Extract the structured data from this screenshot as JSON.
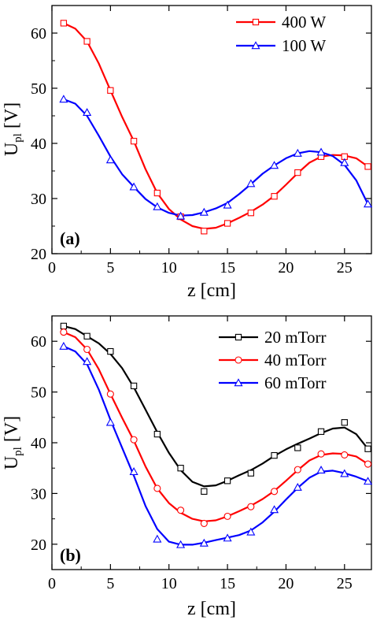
{
  "chart_data": [
    {
      "type": "line",
      "panel_label": "(a)",
      "xlabel": "z [cm]",
      "ylabel_main": "U",
      "ylabel_sub": "pl",
      "ylabel_unit": " [V]",
      "xlim": [
        0,
        27.3
      ],
      "ylim": [
        20,
        65
      ],
      "xticks": [
        0,
        5,
        10,
        15,
        20,
        25
      ],
      "yticks": [
        20,
        30,
        40,
        50,
        60
      ],
      "legend_position": "top-right",
      "series": [
        {
          "name": "400 W",
          "color": "#ff0000",
          "marker": "square",
          "x": [
            1,
            3,
            5,
            7,
            9,
            11,
            13,
            15,
            17,
            19,
            21,
            23,
            25,
            27
          ],
          "y": [
            61.8,
            58.5,
            49.6,
            40.4,
            31.0,
            26.7,
            24.1,
            25.5,
            27.4,
            30.4,
            34.7,
            37.6,
            37.6,
            35.8
          ],
          "curve_x": [
            1,
            2,
            3,
            4,
            5,
            6,
            7,
            8,
            9,
            10,
            11,
            12,
            13,
            14,
            15,
            16,
            17,
            18,
            19,
            20,
            21,
            22,
            23,
            24,
            25,
            26,
            27
          ],
          "curve_y": [
            61.8,
            60.8,
            58.5,
            54.5,
            49.6,
            44.8,
            40.4,
            35.3,
            31.0,
            28.1,
            26.2,
            25.0,
            24.5,
            24.7,
            25.5,
            26.5,
            27.6,
            28.9,
            30.5,
            32.5,
            34.6,
            36.5,
            37.6,
            37.9,
            37.8,
            37.3,
            35.8
          ]
        },
        {
          "name": "100 W",
          "color": "#0000ff",
          "marker": "triangle",
          "x": [
            1,
            3,
            5,
            7,
            9,
            11,
            13,
            15,
            17,
            19,
            21,
            23,
            25,
            27
          ],
          "y": [
            48.0,
            45.6,
            37.0,
            32.1,
            28.5,
            26.8,
            27.5,
            28.8,
            32.7,
            36.0,
            38.2,
            38.4,
            36.5,
            29.0
          ],
          "curve_x": [
            1,
            2,
            3,
            4,
            5,
            6,
            7,
            8,
            9,
            10,
            11,
            12,
            13,
            14,
            15,
            16,
            17,
            18,
            19,
            20,
            21,
            22,
            23,
            24,
            25,
            26,
            27
          ],
          "curve_y": [
            48.0,
            47.2,
            45.0,
            41.4,
            37.6,
            34.4,
            32.1,
            29.9,
            28.4,
            27.4,
            26.9,
            27.0,
            27.5,
            28.2,
            29.2,
            30.8,
            32.6,
            34.5,
            36.0,
            37.3,
            38.2,
            38.6,
            38.4,
            37.7,
            36.1,
            33.3,
            29.0
          ]
        }
      ]
    },
    {
      "type": "line",
      "panel_label": "(b)",
      "xlabel": "z [cm]",
      "ylabel_main": "U",
      "ylabel_sub": "pl",
      "ylabel_unit": " [V]",
      "xlim": [
        0,
        27.3
      ],
      "ylim": [
        15,
        65
      ],
      "xticks": [
        0,
        5,
        10,
        15,
        20,
        25
      ],
      "yticks": [
        20,
        30,
        40,
        50,
        60
      ],
      "legend_position": "top-right",
      "series": [
        {
          "name": "20 mTorr",
          "color": "#000000",
          "marker": "square",
          "x": [
            1,
            3,
            5,
            7,
            9,
            11,
            13,
            15,
            17,
            19,
            21,
            23,
            25,
            27
          ],
          "y": [
            63.0,
            61.0,
            58.0,
            51.2,
            41.7,
            35.0,
            30.4,
            32.5,
            34.0,
            37.5,
            39.0,
            42.2,
            44.0,
            38.8
          ],
          "curve_x": [
            1,
            2,
            3,
            4,
            5,
            6,
            7,
            8,
            9,
            10,
            11,
            12,
            13,
            14,
            15,
            16,
            17,
            18,
            19,
            20,
            21,
            22,
            23,
            24,
            25,
            26,
            27
          ],
          "curve_y": [
            63.0,
            62.4,
            61.0,
            59.6,
            57.5,
            54.7,
            50.9,
            46.5,
            42.1,
            38.0,
            34.6,
            32.3,
            31.4,
            31.6,
            32.5,
            33.6,
            34.6,
            35.9,
            37.4,
            38.7,
            39.8,
            40.8,
            41.9,
            42.8,
            43.0,
            41.7,
            38.8
          ]
        },
        {
          "name": "40 mTorr",
          "color": "#ff0000",
          "marker": "circle",
          "x": [
            1,
            3,
            5,
            7,
            9,
            11,
            13,
            15,
            17,
            19,
            21,
            23,
            25,
            27
          ],
          "y": [
            61.8,
            58.4,
            49.6,
            40.6,
            31.0,
            26.7,
            24.1,
            25.5,
            27.4,
            30.4,
            34.7,
            37.8,
            37.6,
            35.8
          ],
          "curve_x": [
            1,
            2,
            3,
            4,
            5,
            6,
            7,
            8,
            9,
            10,
            11,
            12,
            13,
            14,
            15,
            16,
            17,
            18,
            19,
            20,
            21,
            22,
            23,
            24,
            25,
            26,
            27
          ],
          "curve_y": [
            61.8,
            60.8,
            58.4,
            54.5,
            49.6,
            44.9,
            40.4,
            35.3,
            31.0,
            28.1,
            26.2,
            25.0,
            24.5,
            24.7,
            25.5,
            26.5,
            27.6,
            28.9,
            30.5,
            32.5,
            34.6,
            36.5,
            37.6,
            37.9,
            37.8,
            37.3,
            35.8
          ]
        },
        {
          "name": "60 mTorr",
          "color": "#0000ff",
          "marker": "triangle",
          "x": [
            1,
            3,
            5,
            7,
            9,
            11,
            13,
            15,
            17,
            19,
            21,
            23,
            25,
            27
          ],
          "y": [
            59.0,
            56.0,
            44.0,
            34.3,
            21.0,
            19.9,
            20.2,
            21.2,
            22.4,
            26.8,
            31.2,
            34.6,
            33.9,
            32.4
          ],
          "curve_x": [
            1,
            2,
            3,
            4,
            5,
            6,
            7,
            8,
            9,
            10,
            11,
            12,
            13,
            14,
            15,
            16,
            17,
            18,
            19,
            20,
            21,
            22,
            23,
            24,
            25,
            26,
            27
          ],
          "curve_y": [
            59.0,
            58.0,
            55.5,
            50.5,
            44.5,
            39.0,
            33.5,
            27.5,
            23.0,
            20.5,
            19.9,
            19.9,
            20.3,
            20.8,
            21.3,
            21.8,
            22.7,
            24.3,
            26.4,
            28.8,
            31.1,
            33.1,
            34.3,
            34.5,
            34.0,
            33.3,
            32.4
          ]
        }
      ]
    }
  ]
}
